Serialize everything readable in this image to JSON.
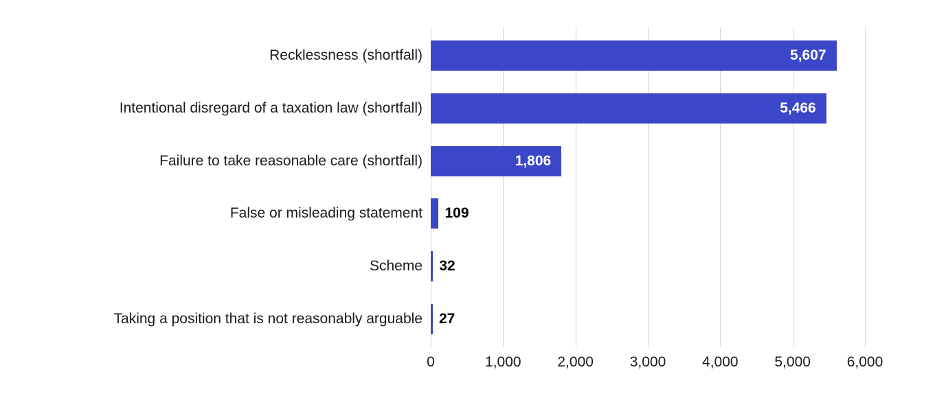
{
  "chart_data": {
    "type": "bar",
    "orientation": "horizontal",
    "title": "",
    "xlabel": "",
    "ylabel": "",
    "categories": [
      "Recklessness (shortfall)",
      "Intentional disregard of a taxation law (shortfall)",
      "Failure to take reasonable care (shortfall)",
      "False or misleading statement",
      "Scheme",
      "Taking a position that is not reasonably arguable"
    ],
    "values": [
      5607,
      5466,
      1806,
      109,
      32,
      27
    ],
    "value_labels": [
      "5,607",
      "5,466",
      "1,806",
      "109",
      "32",
      "27"
    ],
    "xlim": [
      0,
      6000
    ],
    "x_ticks": [
      0,
      1000,
      2000,
      3000,
      4000,
      5000,
      6000
    ],
    "x_tick_labels": [
      "0",
      "1,000",
      "2,000",
      "3,000",
      "4,000",
      "5,000",
      "6,000"
    ],
    "grid": "vertical-gridlines-on",
    "legend": "none",
    "colors": {
      "bar": "#3B46C8",
      "gridline": "#D2D2D2",
      "value_label_inside": "#FFFFFF",
      "value_label_outside": "#000000",
      "text": "#1A1A1A",
      "background": "#FFFFFF"
    }
  }
}
